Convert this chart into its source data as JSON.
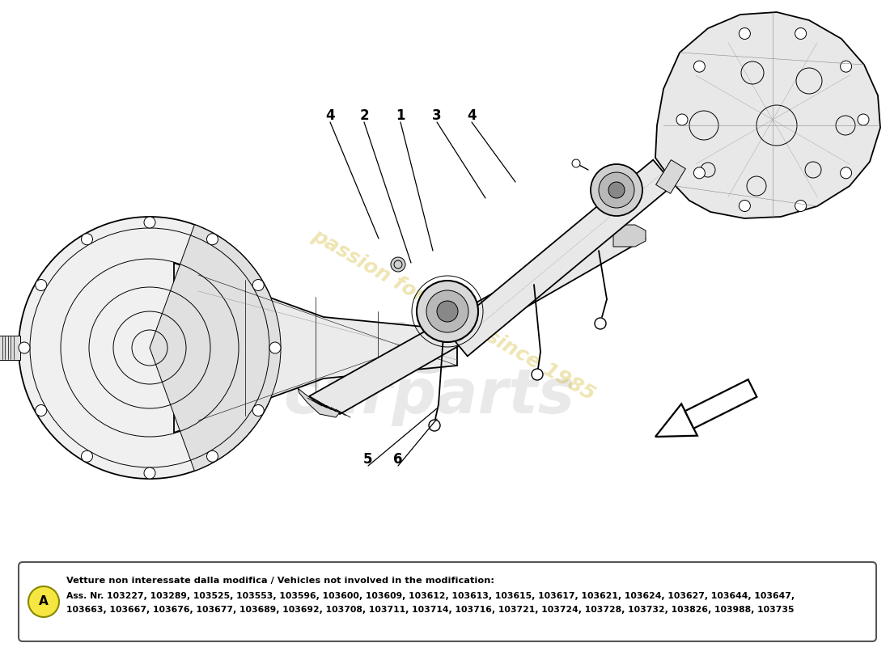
{
  "bg_color": "#ffffff",
  "fig_width": 11.0,
  "fig_height": 8.0,
  "dpi": 100,
  "watermark_text": "passion for parts since 1985",
  "watermark_color": "#c8a800",
  "watermark_alpha": 0.3,
  "bottom_box_text_line1": "Vetture non interessate dalla modifica / Vehicles not involved in the modification:",
  "bottom_box_text_line2": "Ass. Nr. 103227, 103289, 103525, 103553, 103596, 103600, 103609, 103612, 103613, 103615, 103617, 103621, 103624, 103627, 103644, 103647,",
  "bottom_box_text_line3": "103663, 103667, 103676, 103677, 103689, 103692, 103708, 103711, 103714, 103716, 103721, 103724, 103728, 103732, 103826, 103988, 103735",
  "circle_A_color": "#f5e642",
  "line_color": "#000000",
  "lw_main": 1.3,
  "lw_thin": 0.7
}
